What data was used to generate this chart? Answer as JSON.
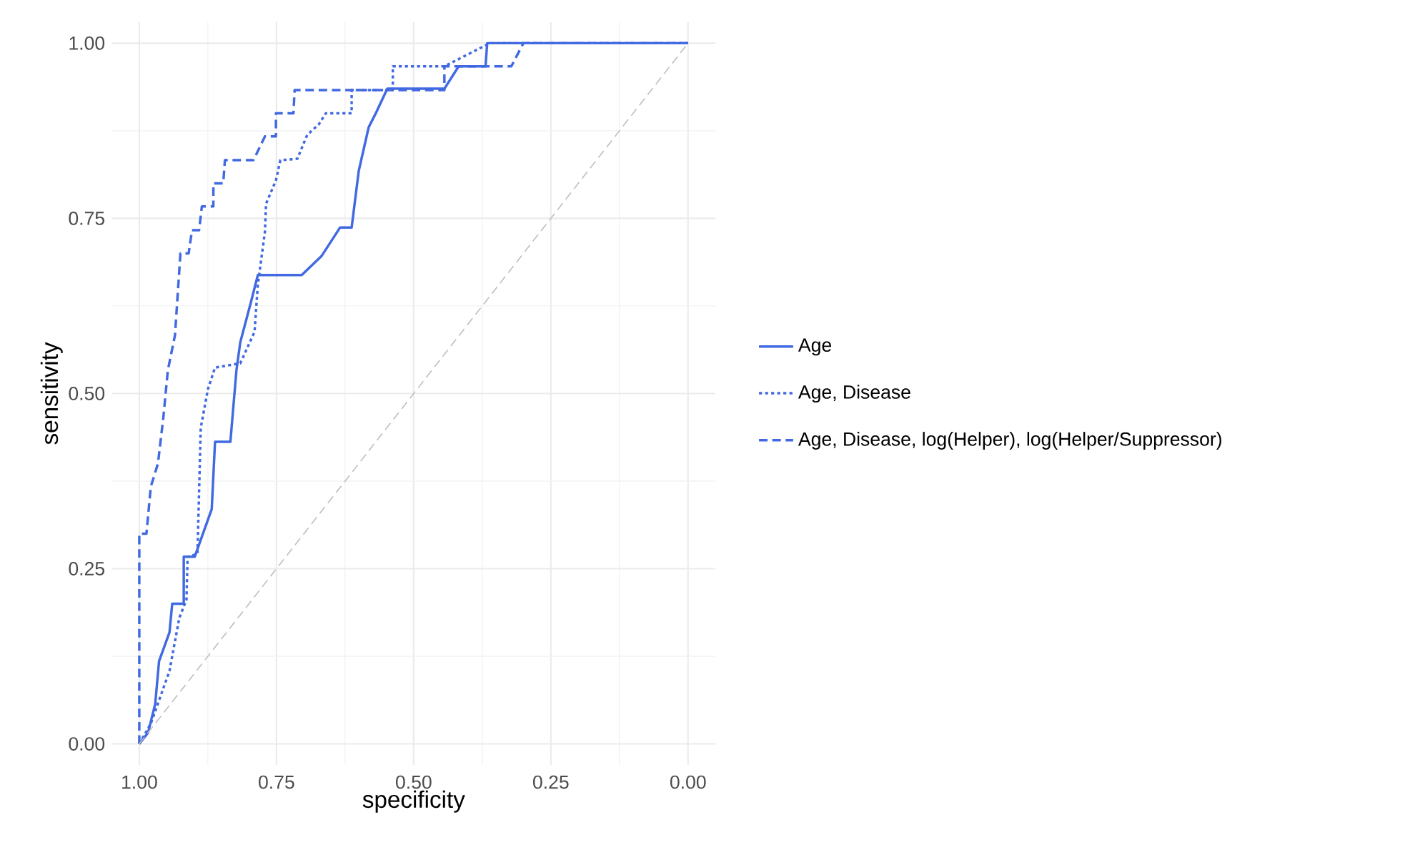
{
  "chart_data": {
    "type": "line",
    "xlabel": "specificity",
    "ylabel": "sensitivity",
    "xlim": [
      1.05,
      -0.05
    ],
    "ylim": [
      -0.03,
      1.03
    ],
    "xticks": [
      {
        "value": 1,
        "label": "1.00"
      },
      {
        "value": 0.75,
        "label": "0.75"
      },
      {
        "value": 0.5,
        "label": "0.50"
      },
      {
        "value": 0.25,
        "label": "0.25"
      },
      {
        "value": 0,
        "label": "0.00"
      }
    ],
    "yticks": [
      {
        "value": 0,
        "label": "0.00"
      },
      {
        "value": 0.25,
        "label": "0.25"
      },
      {
        "value": 0.5,
        "label": "0.50"
      },
      {
        "value": 0.75,
        "label": "0.75"
      },
      {
        "value": 1,
        "label": "1.00"
      }
    ],
    "grid": true,
    "legend": "right",
    "marker": "none",
    "series": [
      {
        "name": "Age",
        "color": "#4169e1",
        "line_style": "solid",
        "x": [
          1,
          0.984,
          0.971,
          0.964,
          0.945,
          0.94,
          0.919,
          0.919,
          0.899,
          0.868,
          0.862,
          0.834,
          0.823,
          0.816,
          0.797,
          0.784,
          0.704,
          0.668,
          0.634,
          0.613,
          0.6,
          0.582,
          0.569,
          0.548,
          0.444,
          0.418,
          0.369,
          0.366,
          0
        ],
        "values": [
          0,
          0.016,
          0.057,
          0.118,
          0.159,
          0.2,
          0.2,
          0.267,
          0.267,
          0.335,
          0.431,
          0.431,
          0.533,
          0.573,
          0.629,
          0.669,
          0.669,
          0.696,
          0.737,
          0.737,
          0.818,
          0.88,
          0.9,
          0.935,
          0.935,
          0.967,
          0.967,
          1,
          1
        ]
      },
      {
        "name": "Age, Disease",
        "color": "#4169e1",
        "line_style": "dotted",
        "x": [
          1,
          0.979,
          0.945,
          0.927,
          0.914,
          0.912,
          0.894,
          0.888,
          0.875,
          0.862,
          0.816,
          0.79,
          0.784,
          0.771,
          0.769,
          0.751,
          0.743,
          0.712,
          0.694,
          0.673,
          0.66,
          0.613,
          0.613,
          0.538,
          0.538,
          0.444,
          0.361,
          0
        ],
        "values": [
          0,
          0.029,
          0.104,
          0.18,
          0.206,
          0.267,
          0.271,
          0.451,
          0.506,
          0.537,
          0.543,
          0.588,
          0.655,
          0.731,
          0.771,
          0.804,
          0.833,
          0.835,
          0.869,
          0.884,
          0.9,
          0.9,
          0.933,
          0.933,
          0.967,
          0.967,
          1,
          1
        ]
      },
      {
        "name": "Age, Disease, log(Helper), log(Helper/Suppressor)",
        "color": "#4169e1",
        "line_style": "dashed",
        "x": [
          1,
          1,
          0.987,
          0.979,
          0.966,
          0.956,
          0.948,
          0.935,
          0.925,
          0.91,
          0.904,
          0.891,
          0.886,
          0.865,
          0.865,
          0.847,
          0.844,
          0.792,
          0.771,
          0.751,
          0.751,
          0.719,
          0.717,
          0.444,
          0.444,
          0.322,
          0.3,
          0
        ],
        "values": [
          0,
          0.3,
          0.3,
          0.367,
          0.4,
          0.467,
          0.533,
          0.583,
          0.7,
          0.7,
          0.733,
          0.733,
          0.767,
          0.767,
          0.8,
          0.8,
          0.833,
          0.833,
          0.867,
          0.867,
          0.9,
          0.9,
          0.933,
          0.933,
          0.967,
          0.967,
          1,
          1
        ]
      },
      {
        "color": "#bebebe",
        "line_style": "dashed",
        "x": [
          1,
          0
        ],
        "values": [
          0,
          1
        ]
      }
    ]
  }
}
